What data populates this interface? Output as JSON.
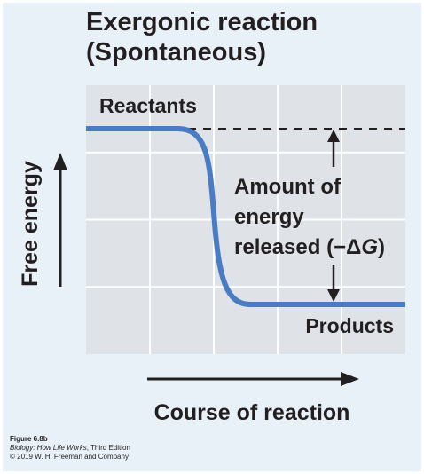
{
  "chart_data": {
    "type": "line",
    "title_lines": [
      "Exergonic reaction",
      "(Spontaneous)"
    ],
    "xlabel": "Course of reaction",
    "ylabel": "Free energy",
    "grid": true,
    "curve": {
      "name": "",
      "start_level": "Reactants",
      "end_level": "Products",
      "color": "#4a7cc4",
      "reactant_energy": 1.0,
      "product_energy": 0.0
    },
    "labels": {
      "reactants": "Reactants",
      "products": "Products",
      "amount_line1": "Amount of",
      "amount_line2": "energy",
      "amount_line3": "released (−Δ",
      "amount_var": "G",
      "amount_close": ")"
    },
    "colors": {
      "background": "#e9f1f8",
      "plot_area": "#dfe3e7",
      "grid": "#ffffff",
      "curve": "#4a7cc4",
      "text": "#231f20"
    }
  },
  "credit": {
    "figure": "Figure 6.8b",
    "book_title": "Biology: How Life Works",
    "edition": ", Third Edition",
    "copyright": "© 2019 W. H. Freeman and Company"
  },
  "icons": {
    "y_axis_arrow": "arrow-up-icon",
    "x_axis_arrow": "arrow-right-icon",
    "energy_arrow": "double-arrow-icon"
  }
}
